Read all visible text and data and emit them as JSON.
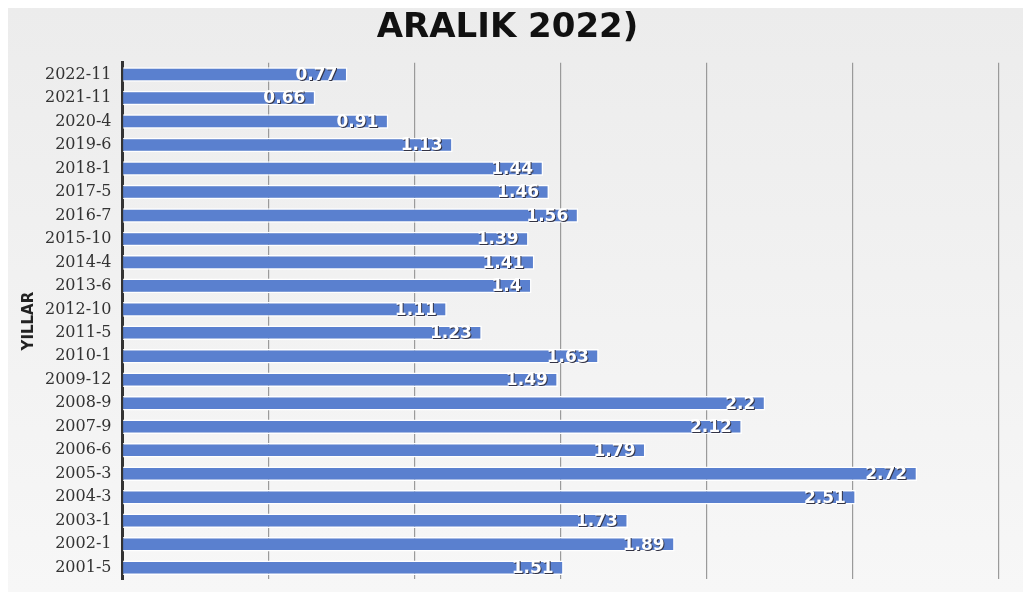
{
  "chart_data": {
    "type": "bar",
    "orientation": "horizontal",
    "title": "ARALIK 2022)",
    "ylabel": "YILLAR",
    "categories": [
      "2022-11",
      "2021-11",
      "2020-4",
      "2019-6",
      "2018-1",
      "2017-5",
      "2016-7",
      "2015-10",
      "2014-4",
      "2013-6",
      "2012-10",
      "2011-5",
      "2010-1",
      "2009-12",
      "2008-9",
      "2007-9",
      "2006-6",
      "2005-3",
      "2004-3",
      "2003-1",
      "2002-1",
      "2001-5"
    ],
    "values": [
      0.77,
      0.66,
      0.91,
      1.13,
      1.44,
      1.46,
      1.56,
      1.39,
      1.41,
      1.4,
      1.11,
      1.23,
      1.63,
      1.49,
      2.2,
      2.12,
      1.79,
      2.72,
      2.51,
      1.73,
      1.89,
      1.51
    ],
    "color": "#5a80cf",
    "data_labels": true,
    "xlim": [
      0,
      3
    ],
    "xticks": [
      {
        "value": 0,
        "label": null
      },
      {
        "value": 0.5,
        "label": null
      },
      {
        "value": 1,
        "label": null
      },
      {
        "value": 1.5,
        "label": null
      },
      {
        "value": 2,
        "label": null
      },
      {
        "value": 2.5,
        "label": null
      },
      {
        "value": 3,
        "label": null
      }
    ],
    "tick_labels": "y",
    "grid": "x",
    "legend": false
  }
}
